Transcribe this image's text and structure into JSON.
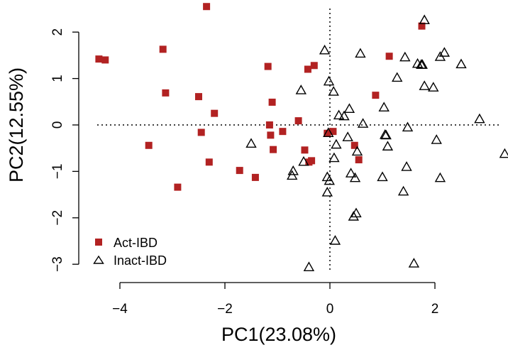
{
  "chart_data": {
    "type": "scatter",
    "title": "",
    "xlabel": "PC1(23.08%)",
    "ylabel": "PC2(12.55%)",
    "xlim": [
      -4.5,
      3.35
    ],
    "ylim": [
      -3.2,
      2.55
    ],
    "xticks": [
      "−4",
      "−2",
      "0",
      "2"
    ],
    "xtick_values": [
      -4,
      -2,
      0,
      2
    ],
    "yticks": [
      "−3",
      "−2",
      "−1",
      "0",
      "1",
      "2"
    ],
    "ytick_values": [
      -3,
      -2,
      -1,
      0,
      1,
      2
    ],
    "reference_lines": {
      "x": 0,
      "y": 0,
      "style": "dotted"
    },
    "legend_position": "bottom-left",
    "series": [
      {
        "name": "Act-IBD",
        "marker": "filled-square",
        "color": "#b22222",
        "points": [
          [
            -2.35,
            2.55
          ],
          [
            -4.4,
            1.42
          ],
          [
            -4.28,
            1.4
          ],
          [
            -3.18,
            1.63
          ],
          [
            -3.13,
            0.69
          ],
          [
            -2.5,
            0.61
          ],
          [
            -2.2,
            0.25
          ],
          [
            -2.45,
            -0.16
          ],
          [
            -3.45,
            -0.44
          ],
          [
            -2.3,
            -0.8
          ],
          [
            -2.9,
            -1.34
          ],
          [
            -1.72,
            -0.98
          ],
          [
            -1.42,
            -1.13
          ],
          [
            -1.18,
            1.26
          ],
          [
            -1.1,
            0.49
          ],
          [
            -1.15,
            0.0
          ],
          [
            -1.13,
            -0.22
          ],
          [
            -1.08,
            -0.53
          ],
          [
            -0.9,
            -0.14
          ],
          [
            -0.6,
            0.09
          ],
          [
            -0.42,
            1.2
          ],
          [
            -0.3,
            1.28
          ],
          [
            -0.48,
            -0.54
          ],
          [
            -0.4,
            -0.8
          ],
          [
            -0.35,
            -0.77
          ],
          [
            -0.05,
            -0.18
          ],
          [
            0.06,
            -0.14
          ],
          [
            0.47,
            -0.44
          ],
          [
            0.55,
            -0.75
          ],
          [
            0.87,
            0.64
          ],
          [
            1.13,
            1.48
          ],
          [
            1.75,
            2.13
          ]
        ]
      },
      {
        "name": "Inact-IBD",
        "marker": "open-triangle",
        "color": "#000000",
        "points": [
          [
            1.8,
            2.25
          ],
          [
            -0.1,
            1.6
          ],
          [
            0.58,
            1.53
          ],
          [
            1.43,
            1.45
          ],
          [
            1.28,
            1.01
          ],
          [
            1.67,
            1.31
          ],
          [
            1.74,
            1.29
          ],
          [
            1.76,
            1.29
          ],
          [
            2.1,
            1.46
          ],
          [
            2.18,
            1.55
          ],
          [
            2.5,
            1.3
          ],
          [
            -0.02,
            0.93
          ],
          [
            0.07,
            0.71
          ],
          [
            -0.55,
            0.74
          ],
          [
            1.8,
            0.83
          ],
          [
            1.97,
            0.8
          ],
          [
            1.03,
            0.37
          ],
          [
            0.37,
            0.34
          ],
          [
            0.17,
            0.2
          ],
          [
            0.27,
            0.18
          ],
          [
            0.63,
            0.02
          ],
          [
            1.48,
            -0.06
          ],
          [
            2.85,
            0.12
          ],
          [
            -0.03,
            -0.18
          ],
          [
            0.34,
            -0.27
          ],
          [
            1.05,
            -0.22
          ],
          [
            1.07,
            -0.23
          ],
          [
            1.1,
            -0.47
          ],
          [
            2.03,
            -0.33
          ],
          [
            3.33,
            -0.63
          ],
          [
            0.12,
            -0.43
          ],
          [
            0.52,
            -0.58
          ],
          [
            -1.5,
            -0.41
          ],
          [
            0.08,
            -0.72
          ],
          [
            -0.5,
            -0.8
          ],
          [
            -0.7,
            -1.0
          ],
          [
            -0.72,
            -1.1
          ],
          [
            0.4,
            -1.05
          ],
          [
            0.48,
            -1.15
          ],
          [
            1.0,
            -1.13
          ],
          [
            1.46,
            -0.91
          ],
          [
            2.1,
            -1.15
          ],
          [
            -0.05,
            -1.13
          ],
          [
            -0.01,
            -1.21
          ],
          [
            -0.05,
            -1.46
          ],
          [
            1.4,
            -1.44
          ],
          [
            0.5,
            -1.91
          ],
          [
            0.45,
            -1.98
          ],
          [
            0.1,
            -2.5
          ],
          [
            -0.4,
            -3.07
          ],
          [
            1.6,
            -2.99
          ]
        ]
      }
    ]
  }
}
